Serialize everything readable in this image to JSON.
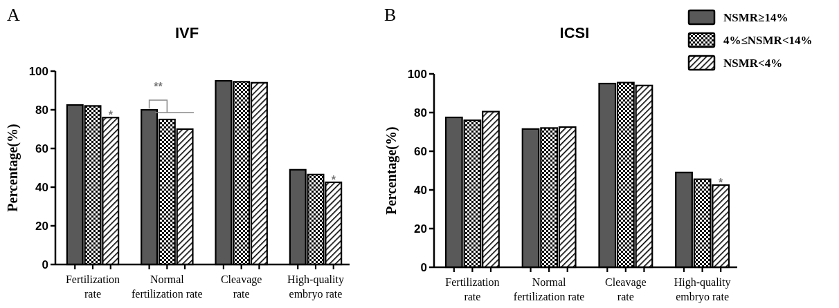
{
  "chart_data": [
    {
      "type": "bar",
      "title": "IVF",
      "ylabel": "Percentage(%)",
      "categories": [
        "Fertilization rate",
        "Normal fertilization rate",
        "Cleavage rate",
        "High-quality embryo rate"
      ],
      "series": [
        {
          "color": "#595959",
          "values": [
            82.5,
            80,
            95,
            49
          ]
        },
        {
          "color": "#000000",
          "values": [
            82,
            75,
            94.5,
            46.5
          ]
        },
        {
          "color": "#000000",
          "values": [
            76,
            70,
            94,
            42.5
          ]
        }
      ],
      "ylim": [
        0,
        100
      ],
      "yticks": [
        0,
        20,
        40,
        60,
        80,
        100
      ],
      "grid": false,
      "legend": false,
      "annotations": [
        "A",
        "*",
        "**",
        "*"
      ]
    },
    {
      "type": "bar",
      "title": "ICSI",
      "ylabel": "Percentage(%)",
      "categories": [
        "Fertilization rate",
        "Normal fertilization rate",
        "Cleavage rate",
        "High-quality embryo rate"
      ],
      "series": [
        {
          "name": "NSMR≥14%",
          "color": "#595959",
          "values": [
            77.5,
            71.5,
            95,
            49
          ]
        },
        {
          "name": "4%≤NSMR<14%",
          "color": "#000000",
          "values": [
            76,
            72,
            95.5,
            45.5
          ]
        },
        {
          "name": "NSMR<4%",
          "color": "#000000",
          "values": [
            80.5,
            72.5,
            94,
            42.5
          ]
        }
      ],
      "ylim": [
        0,
        100
      ],
      "yticks": [
        0,
        20,
        40,
        60,
        80,
        100
      ],
      "grid": false,
      "legend": "top right",
      "annotations": [
        "B",
        "*"
      ]
    }
  ]
}
